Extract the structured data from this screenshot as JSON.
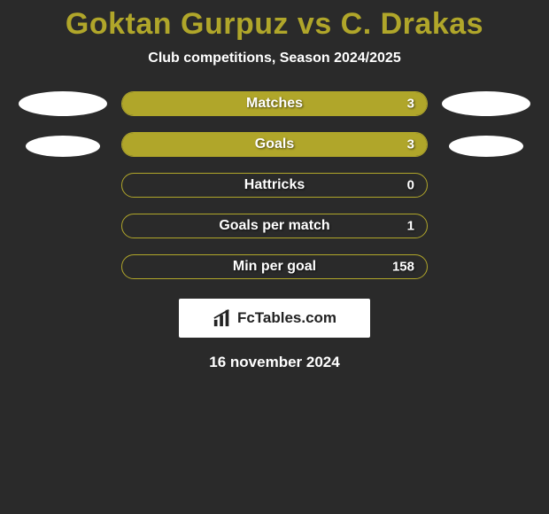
{
  "title": {
    "text": "Goktan Gurpuz vs C. Drakas",
    "color": "#b0a62a",
    "fontsize": 34
  },
  "subtitle": {
    "text": "Club competitions, Season 2024/2025",
    "color": "#ffffff",
    "fontsize": 16
  },
  "stats": [
    {
      "label": "Matches",
      "value": "3",
      "fill_pct": 100,
      "fill_color": "#b0a62a",
      "border_color": "#b0a62a"
    },
    {
      "label": "Goals",
      "value": "3",
      "fill_pct": 100,
      "fill_color": "#b0a62a",
      "border_color": "#b0a62a"
    },
    {
      "label": "Hattricks",
      "value": "0",
      "fill_pct": 0,
      "fill_color": "#b0a62a",
      "border_color": "#b0a62a"
    },
    {
      "label": "Goals per match",
      "value": "1",
      "fill_pct": 0,
      "fill_color": "#b0a62a",
      "border_color": "#b0a62a"
    },
    {
      "label": "Min per goal",
      "value": "158",
      "fill_pct": 0,
      "fill_color": "#b0a62a",
      "border_color": "#b0a62a"
    }
  ],
  "side_ovals": {
    "left": [
      {
        "size": "big"
      },
      {
        "size": "small"
      }
    ],
    "right": [
      {
        "size": "big"
      },
      {
        "size": "small"
      }
    ],
    "color": "#ffffff"
  },
  "logo": {
    "text": "FcTables.com",
    "box_bg": "#ffffff",
    "text_color": "#222222"
  },
  "date": {
    "text": "16 november 2024",
    "color": "#ffffff"
  },
  "bar": {
    "height": 28,
    "radius": 14,
    "label_fontsize": 16,
    "value_fontsize": 15,
    "label_color": "#ffffff",
    "track_bg": "transparent"
  },
  "background_color": "#2a2a2a"
}
